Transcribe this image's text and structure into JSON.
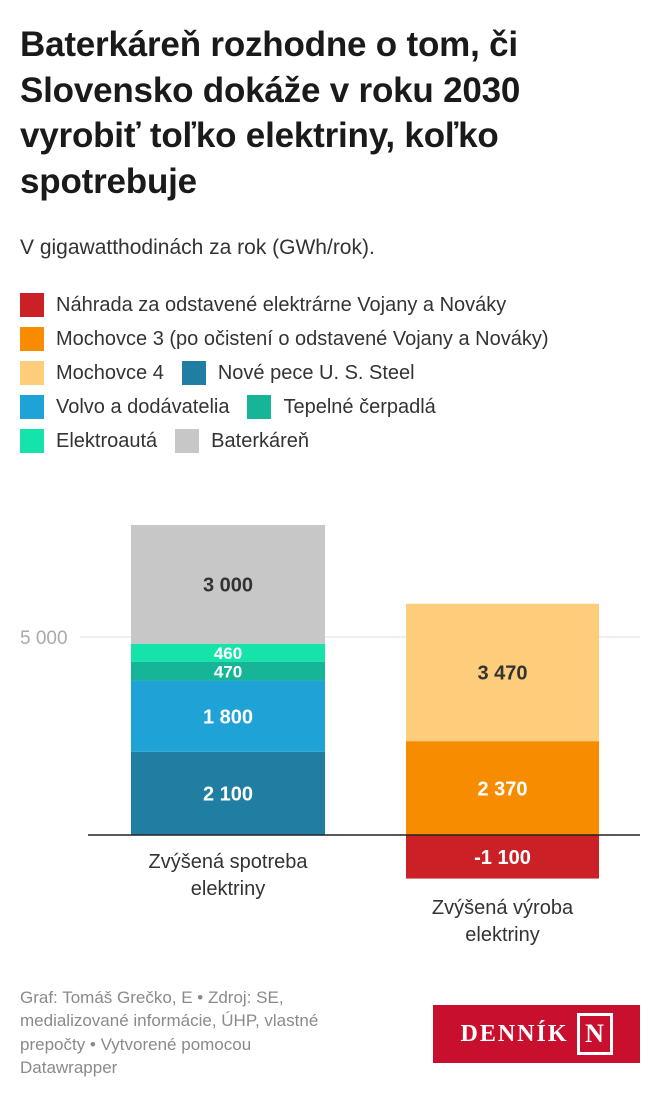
{
  "header": {
    "title": "Baterkáreň rozhodne o tom, či Slovensko dokáže v roku 2030 vyrobiť toľko elektriny, koľko spotrebuje",
    "subtitle": "V gigawatthodinách za rok (GWh/rok)."
  },
  "legend": {
    "items": [
      {
        "label": "Náhrada za odstavené elektrárne Vojany a Nováky",
        "color": "#cc2027"
      },
      {
        "label": "Mochovce 3 (po očistení o odstavené Vojany a Nováky)",
        "color": "#f78c00"
      },
      {
        "label": "Mochovce 4",
        "color": "#fdcd7c"
      },
      {
        "label": "Nové pece U. S. Steel",
        "color": "#1f7ea1"
      },
      {
        "label": "Volvo a dodávatelia",
        "color": "#1fa3d6"
      },
      {
        "label": "Tepelné čerpadlá",
        "color": "#17b598"
      },
      {
        "label": "Elektroautá",
        "color": "#15e3aa"
      },
      {
        "label": "Baterkáreň",
        "color": "#c7c7c7"
      }
    ]
  },
  "chart_data": {
    "type": "bar",
    "stacked": true,
    "categories": [
      "Zvýšená spotreba elektriny",
      "Zvýšená výroba elektriny"
    ],
    "series": [
      {
        "name": "Náhrada za odstavené elektrárne Vojany a Nováky",
        "values": [
          0,
          -1100
        ],
        "labels": [
          "",
          "-1 100"
        ],
        "color": "#cc2027"
      },
      {
        "name": "Mochovce 3 (po očistení o odstavené Vojany a Nováky)",
        "values": [
          0,
          2370
        ],
        "labels": [
          "",
          "2 370"
        ],
        "color": "#f78c00"
      },
      {
        "name": "Mochovce 4",
        "values": [
          0,
          3470
        ],
        "labels": [
          "",
          "3 470"
        ],
        "color": "#fdcd7c"
      },
      {
        "name": "Nové pece U. S. Steel",
        "values": [
          2100,
          0
        ],
        "labels": [
          "2 100",
          ""
        ],
        "color": "#1f7ea1"
      },
      {
        "name": "Volvo a dodávatelia",
        "values": [
          1800,
          0
        ],
        "labels": [
          "1 800",
          ""
        ],
        "color": "#1fa3d6"
      },
      {
        "name": "Tepelné čerpadlá",
        "values": [
          470,
          0
        ],
        "labels": [
          "470",
          ""
        ],
        "color": "#17b598"
      },
      {
        "name": "Elektroautá",
        "values": [
          460,
          0
        ],
        "labels": [
          "460",
          ""
        ],
        "color": "#15e3aa"
      },
      {
        "name": "Baterkáreň",
        "values": [
          3000,
          0
        ],
        "labels": [
          "3 000",
          ""
        ],
        "color": "#c7c7c7"
      }
    ],
    "ylim": [
      -1400,
      7900
    ],
    "yticks": [
      {
        "value": 5000,
        "label": "5 000"
      }
    ],
    "category_labels": [
      [
        "Zvýšená spotreba",
        "elektriny"
      ],
      [
        "Zvýšená výroba",
        "elektriny"
      ]
    ],
    "grid": true,
    "legend_position": "top"
  },
  "footer": {
    "credit_lines": [
      "Graf: Tomáš Grečko, E • Zdroj: SE,",
      "medializované informácie, ÚHP, vlastné",
      "prepočty • Vytvorené pomocou",
      "Datawrapper"
    ]
  },
  "logo": {
    "text": "DENNÍK",
    "mark": "N"
  }
}
